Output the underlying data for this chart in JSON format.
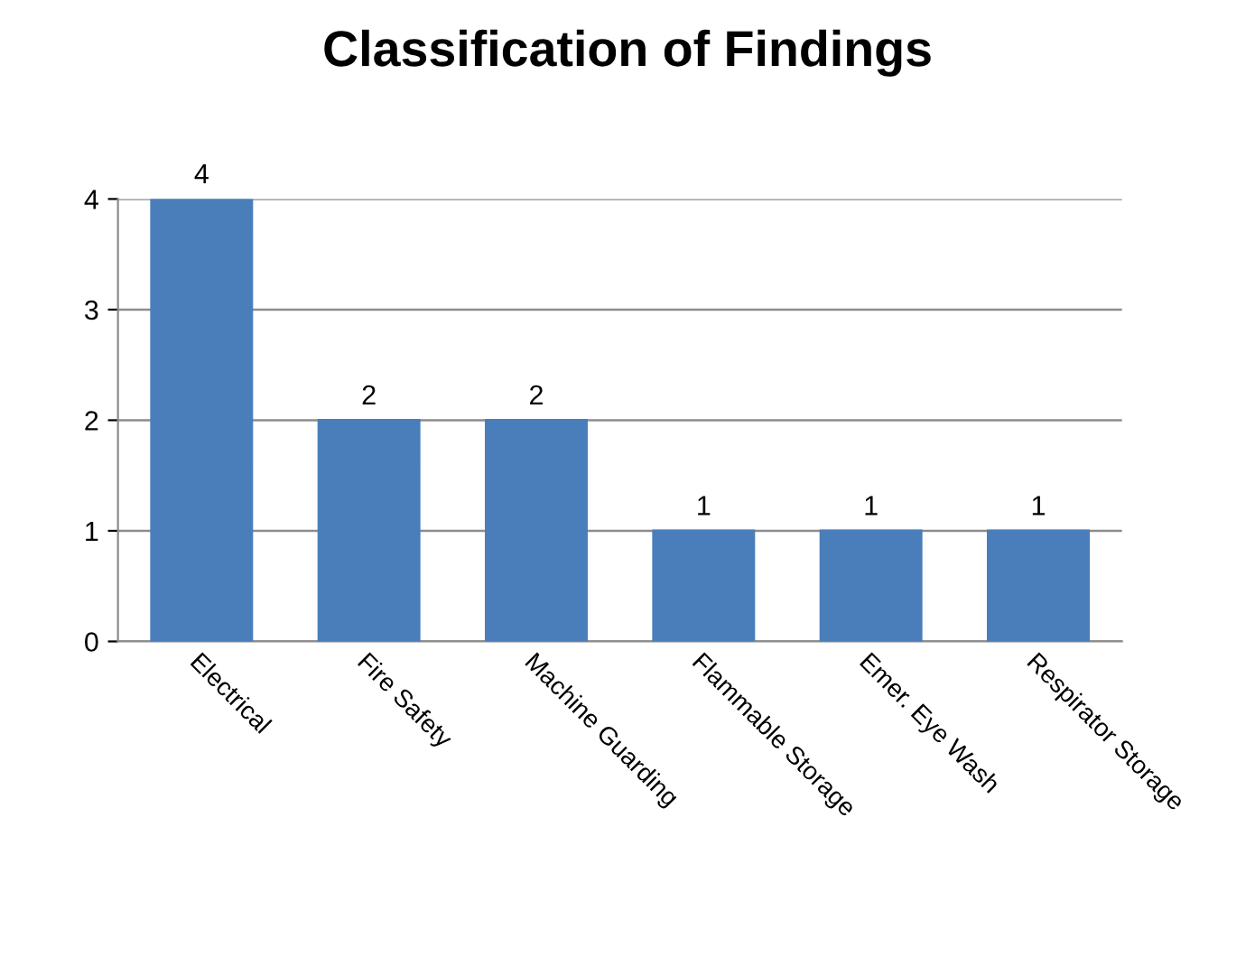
{
  "chart_data": {
    "type": "bar",
    "title": "Classification of Findings",
    "categories": [
      "Electrical",
      "Fire Safety",
      "Machine Guarding",
      "Flammable Storage",
      "Emer. Eye Wash",
      "Respirator Storage"
    ],
    "values": [
      4,
      2,
      2,
      1,
      1,
      1
    ],
    "color": "#4a7ebb",
    "ylim": [
      0,
      4
    ],
    "yticks": [
      0,
      1,
      2,
      3,
      4
    ],
    "grid": "y",
    "data_labels": true
  }
}
